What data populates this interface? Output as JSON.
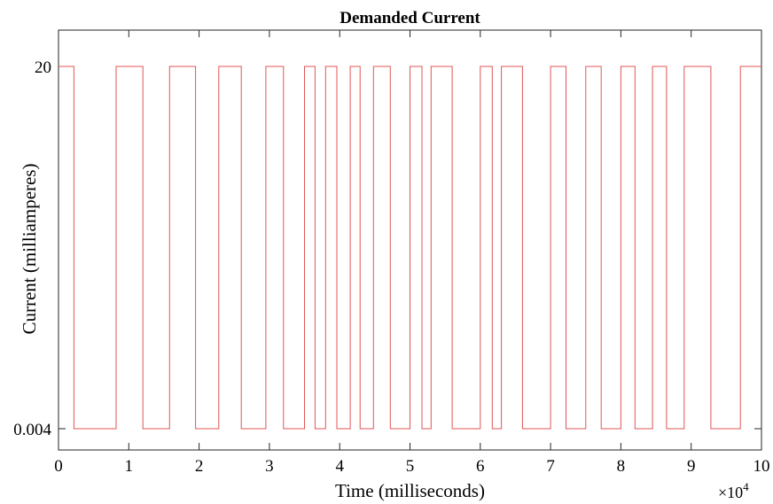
{
  "chart_data": {
    "type": "line",
    "title": "Demanded Current",
    "xlabel": "Time (milliseconds)",
    "ylabel": "Current (milliamperes)",
    "xlim": [
      0,
      100000
    ],
    "x_ticks": [
      0,
      10000,
      20000,
      30000,
      40000,
      50000,
      60000,
      70000,
      80000,
      90000,
      100000
    ],
    "x_tick_labels": [
      "0",
      "1",
      "2",
      "3",
      "4",
      "5",
      "6",
      "7",
      "8",
      "9",
      "10"
    ],
    "x_multiplier": "×10",
    "x_multiplier_exponent": "4",
    "y_levels": [
      0.004,
      20
    ],
    "y_tick_labels": [
      "0.004",
      "20"
    ],
    "grid": false,
    "line_color": "#e05555",
    "series": [
      {
        "step": true,
        "x": [
          0,
          2200,
          8200,
          12000,
          15800,
          19500,
          22800,
          26000,
          29500,
          32000,
          35000,
          36500,
          38000,
          39600,
          41500,
          42900,
          44800,
          47200,
          50000,
          51700,
          53000,
          56000,
          60000,
          61700,
          63000,
          66000,
          70000,
          72200,
          75000,
          77200,
          80000,
          82000,
          84500,
          86500,
          89000,
          92800,
          97000,
          100000
        ],
        "y": [
          20,
          0.004,
          20,
          0.004,
          20,
          0.004,
          20,
          0.004,
          20,
          0.004,
          20,
          0.004,
          20,
          0.004,
          20,
          0.004,
          20,
          0.004,
          20,
          0.004,
          20,
          0.004,
          20,
          0.004,
          20,
          0.004,
          20,
          0.004,
          20,
          0.004,
          20,
          0.004,
          20,
          0.004,
          20,
          0.004,
          20,
          20
        ]
      }
    ]
  }
}
